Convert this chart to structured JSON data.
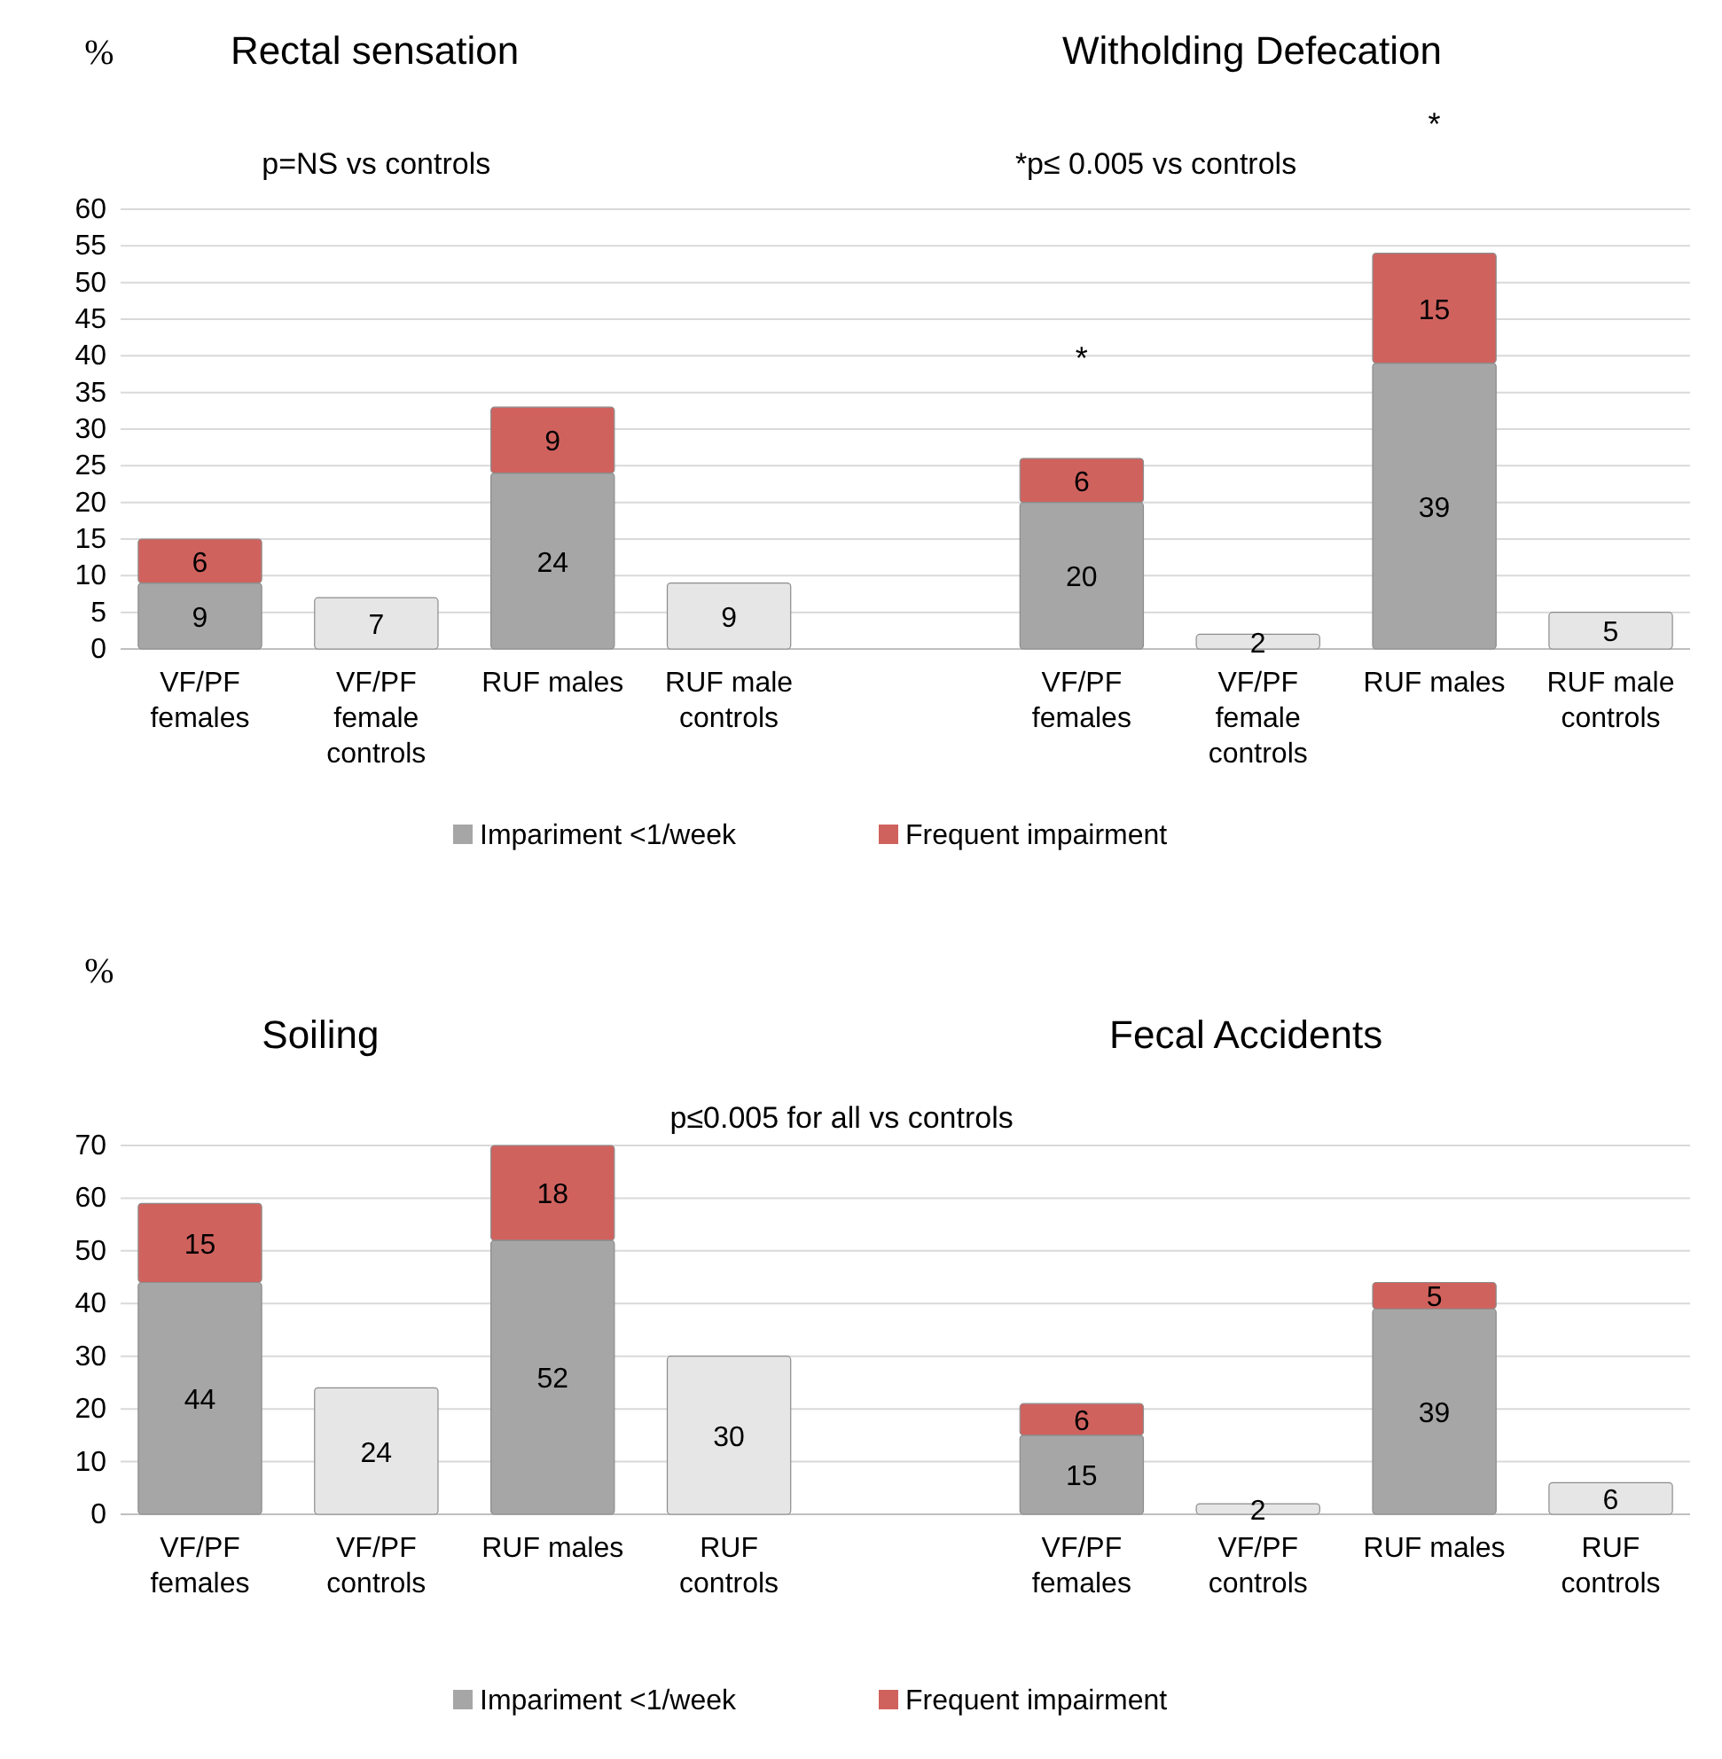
{
  "chart_data": [
    {
      "type": "bar",
      "stacked": true,
      "ylabel": "%",
      "ylim": [
        0,
        60
      ],
      "yticks": [
        0,
        5,
        10,
        15,
        20,
        25,
        30,
        35,
        40,
        45,
        50,
        55,
        60
      ],
      "grid": "y",
      "legend": "bottom",
      "data_labels": true,
      "categories": [
        "VF/PF females",
        "VF/PF female controls",
        "RUF males",
        "RUF male controls",
        null,
        "VF/PF females",
        "VF/PF female controls",
        "RUF males",
        "RUF male controls"
      ],
      "series": [
        {
          "name": "Impariment <1/week",
          "color": "#a6a6a6",
          "colors": [
            "#a6a6a6",
            "#e6e6e6",
            "#a6a6a6",
            "#e6e6e6",
            null,
            "#a6a6a6",
            "#e6e6e6",
            "#a6a6a6",
            "#e6e6e6"
          ],
          "values": [
            9,
            7,
            24,
            9,
            null,
            20,
            2,
            39,
            5
          ]
        },
        {
          "name": "Frequent impairment",
          "color": "#d0625e",
          "values": [
            6,
            null,
            9,
            null,
            null,
            6,
            null,
            15,
            null
          ]
        }
      ],
      "annotations": [
        "Rectal sensation",
        "Witholding Defecation",
        "p=NS vs controls",
        "*p≤ 0.005 vs controls",
        "*",
        "*"
      ]
    },
    {
      "type": "bar",
      "stacked": true,
      "ylabel": "%",
      "ylim": [
        0,
        70
      ],
      "yticks": [
        0,
        10,
        20,
        30,
        40,
        50,
        60,
        70
      ],
      "grid": "y",
      "legend": "bottom",
      "data_labels": true,
      "categories": [
        "VF/PF females",
        "VF/PF controls",
        "RUF males",
        "RUF controls",
        null,
        "VF/PF females",
        "VF/PF controls",
        "RUF males",
        "RUF controls"
      ],
      "series": [
        {
          "name": "Impariment <1/week",
          "color": "#a6a6a6",
          "colors": [
            "#a6a6a6",
            "#e6e6e6",
            "#a6a6a6",
            "#e6e6e6",
            null,
            "#a6a6a6",
            "#e6e6e6",
            "#a6a6a6",
            "#e6e6e6"
          ],
          "values": [
            44,
            24,
            52,
            30,
            null,
            15,
            2,
            39,
            6
          ]
        },
        {
          "name": "Frequent impairment",
          "color": "#d0625e",
          "values": [
            15,
            null,
            18,
            null,
            null,
            6,
            null,
            5,
            null
          ]
        }
      ],
      "annotations": [
        "Soiling",
        "Fecal Accidents",
        "p≤0.005 for all vs controls"
      ]
    }
  ]
}
